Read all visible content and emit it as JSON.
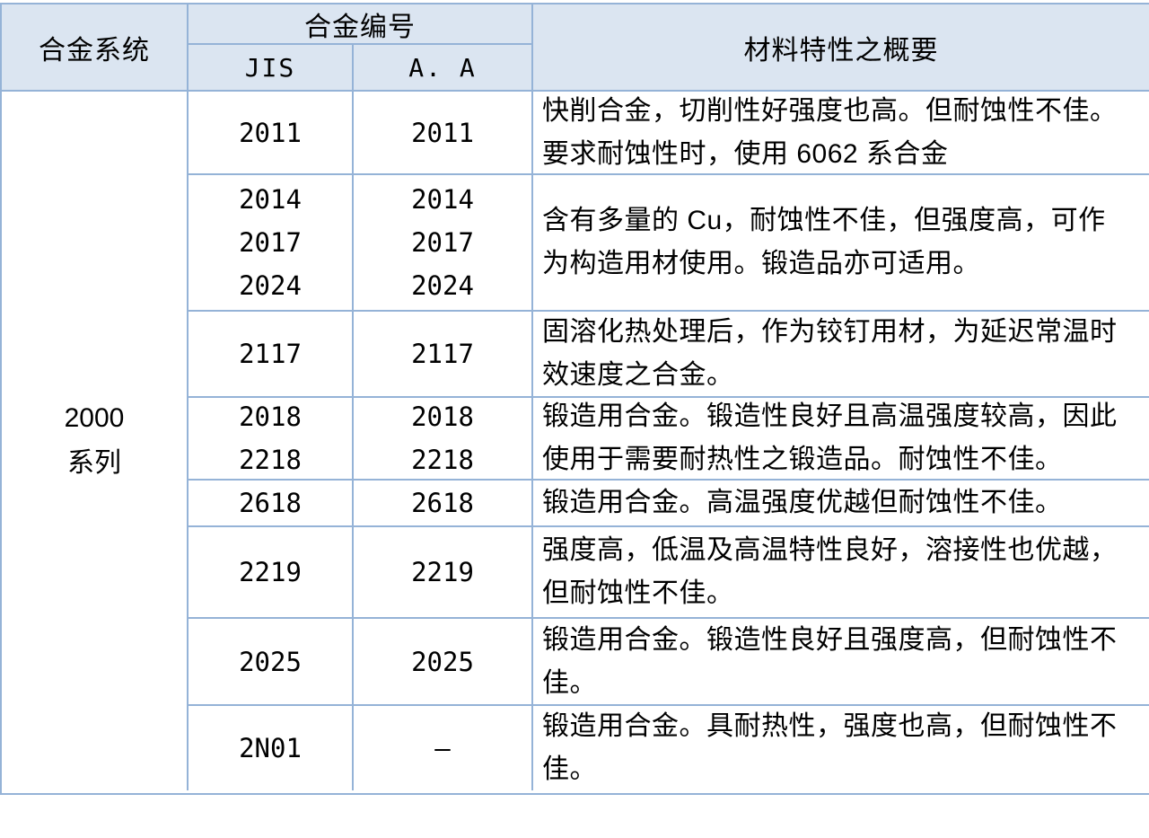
{
  "header": {
    "alloy_system": "合金系统",
    "alloy_number": "合金编号",
    "jis": "JIS",
    "aa": "A. A",
    "characteristics": "材料特性之概要"
  },
  "series_label": "2000\n系列",
  "rows": [
    {
      "jis": "2011",
      "aa": "2011",
      "desc": "快削合金，切削性好强度也高。但耐蚀性不佳。\n要求耐蚀性时，使用 6062 系合金"
    },
    {
      "jis": "2014\n2017\n2024",
      "aa": "2014\n2017\n2024",
      "desc": "含有多量的 Cu，耐蚀性不佳，但强度高，可作\n为构造用材使用。锻造品亦可适用。"
    },
    {
      "jis": "2117",
      "aa": "2117",
      "desc": "固溶化热处理后，作为铰钉用材，为延迟常温时\n效速度之合金。"
    },
    {
      "jis": "2018\n2218",
      "aa": "2018\n2218",
      "desc": "锻造用合金。锻造性良好且高温强度较高，因此\n使用于需要耐热性之锻造品。耐蚀性不佳。"
    },
    {
      "jis": "2618",
      "aa": "2618",
      "desc": "锻造用合金。高温强度优越但耐蚀性不佳。"
    },
    {
      "jis": "2219",
      "aa": "2219",
      "desc": "强度高，低温及高温特性良好，溶接性也优越，\n但耐蚀性不佳。"
    },
    {
      "jis": "2025",
      "aa": "2025",
      "desc": "锻造用合金。锻造性良好且强度高，但耐蚀性不\n佳。"
    },
    {
      "jis": "2N01",
      "aa": "—",
      "desc": "锻造用合金。具耐热性，强度也高，但耐蚀性不\n佳。"
    }
  ],
  "colors": {
    "header_bg": "#dbe5f1",
    "border": "#95b3d7",
    "text": "#000000"
  }
}
